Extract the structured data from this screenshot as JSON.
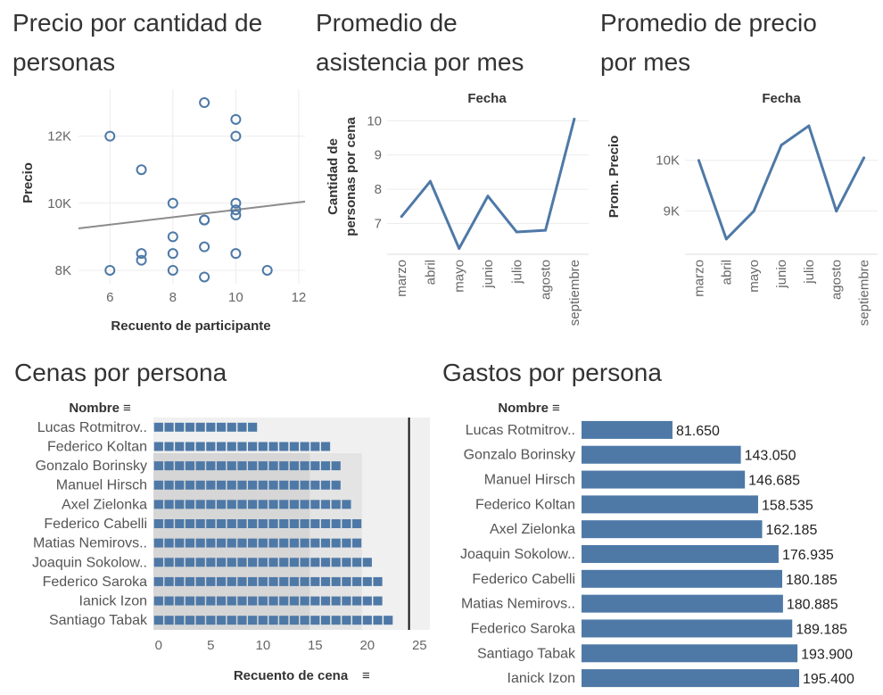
{
  "charts": {
    "scatter": {
      "title_line1": "Precio por cantidad de",
      "title_line2": "personas",
      "xlabel": "Recuento de participante",
      "ylabel": "Precio",
      "xticks": [
        "6",
        "8",
        "10",
        "12"
      ],
      "yticks": [
        "8K",
        "10K",
        "12K"
      ]
    },
    "attendance": {
      "title_line1": "Promedio de",
      "title_line2": "asistencia por mes",
      "header": "Fecha",
      "ylabel_line1": "Cantidad de",
      "ylabel_line2": "personas por cena",
      "yticks": [
        "7",
        "8",
        "9",
        "10"
      ]
    },
    "price": {
      "title_line1": "Promedio de precio",
      "title_line2": "por mes",
      "header": "Fecha",
      "ylabel": "Prom. Precio",
      "yticks": [
        "9K",
        "10K"
      ]
    },
    "dinners": {
      "title": "Cenas por persona",
      "header": "Nombre",
      "xlabel": "Recuento de cena",
      "xticks": [
        "0",
        "5",
        "10",
        "15",
        "20",
        "25"
      ]
    },
    "spend": {
      "title": "Gastos por persona",
      "header": "Nombre"
    }
  },
  "chart_data": [
    {
      "type": "scatter",
      "title": "Precio por cantidad de personas",
      "xlabel": "Recuento de participante",
      "ylabel": "Precio",
      "xlim": [
        5,
        12.2
      ],
      "ylim": [
        7600,
        13400
      ],
      "points": [
        {
          "x": 6,
          "y": 12000
        },
        {
          "x": 6,
          "y": 8000
        },
        {
          "x": 7,
          "y": 11000
        },
        {
          "x": 7,
          "y": 8500
        },
        {
          "x": 7,
          "y": 8300
        },
        {
          "x": 8,
          "y": 10000
        },
        {
          "x": 8,
          "y": 9000
        },
        {
          "x": 8,
          "y": 8500
        },
        {
          "x": 8,
          "y": 8000
        },
        {
          "x": 9,
          "y": 13000
        },
        {
          "x": 9,
          "y": 9500
        },
        {
          "x": 9,
          "y": 9500
        },
        {
          "x": 9,
          "y": 8700
        },
        {
          "x": 9,
          "y": 7800
        },
        {
          "x": 10,
          "y": 12500
        },
        {
          "x": 10,
          "y": 12000
        },
        {
          "x": 10,
          "y": 10000
        },
        {
          "x": 10,
          "y": 9800
        },
        {
          "x": 10,
          "y": 9650
        },
        {
          "x": 10,
          "y": 8500
        },
        {
          "x": 11,
          "y": 8000
        }
      ],
      "trend": {
        "x": [
          5,
          12.2
        ],
        "y": [
          9250,
          10050
        ]
      },
      "grid": true
    },
    {
      "type": "line",
      "title": "Promedio de asistencia por mes",
      "header": "Fecha",
      "ylabel": "Cantidad de personas por cena",
      "categories": [
        "marzo",
        "abril",
        "mayo",
        "junio",
        "julio",
        "agosto",
        "septiembre"
      ],
      "values": [
        7.2,
        8.23,
        6.27,
        7.8,
        6.75,
        6.8,
        10.05
      ],
      "ylim": [
        6.1,
        10.4
      ],
      "grid": true
    },
    {
      "type": "line",
      "title": "Promedio de precio por mes",
      "header": "Fecha",
      "ylabel": "Prom. Precio",
      "categories": [
        "marzo",
        "abril",
        "mayo",
        "junio",
        "julio",
        "agosto",
        "septiembre"
      ],
      "values": [
        10000,
        8450,
        9000,
        10300,
        10680,
        9000,
        10050
      ],
      "ylim": [
        8150,
        11050
      ],
      "grid": true
    },
    {
      "type": "bar",
      "orientation": "horizontal",
      "title": "Cenas por persona",
      "header": "Nombre",
      "xlabel": "Recuento de cena",
      "categories": [
        "Lucas Rotmitrov..",
        "Federico Koltan",
        "Gonzalo Borinsky",
        "Manuel Hirsch",
        "Axel Zielonka",
        "Federico Cabelli",
        "Matias Nemirovs..",
        "Joaquin Sokolow..",
        "Federico Saroka",
        "Ianick Izon",
        "Santiago Tabak"
      ],
      "values": [
        10,
        17,
        18,
        18,
        19,
        20,
        20,
        21,
        22,
        22,
        23
      ],
      "xlim": [
        -0.5,
        26
      ],
      "reference_line": 24,
      "bands": [
        [
          -0.5,
          14.5
        ],
        [
          14.5,
          19.5
        ],
        [
          19.5,
          26
        ]
      ]
    },
    {
      "type": "bar",
      "orientation": "horizontal",
      "title": "Gastos por persona",
      "header": "Nombre",
      "categories": [
        "Lucas Rotmitrov..",
        "Gonzalo Borinsky",
        "Manuel Hirsch",
        "Federico Koltan",
        "Axel Zielonka",
        "Joaquin Sokolow..",
        "Federico Cabelli",
        "Matias Nemirovs..",
        "Federico Saroka",
        "Santiago Tabak",
        "Ianick Izon"
      ],
      "values": [
        81650,
        143050,
        146685,
        158535,
        162185,
        176935,
        180185,
        180885,
        189185,
        193900,
        195400
      ],
      "labels": [
        "81.650",
        "143.050",
        "146.685",
        "158.535",
        "162.185",
        "176.935",
        "180.185",
        "180.885",
        "189.185",
        "193.900",
        "195.400"
      ]
    }
  ],
  "colors": {
    "mark": "#4e79a7",
    "trend": "#8c8c8c",
    "grid": "#ececec",
    "band_light": "#efefef",
    "band_dark": "#d9d9d9",
    "reference": "#111111"
  }
}
